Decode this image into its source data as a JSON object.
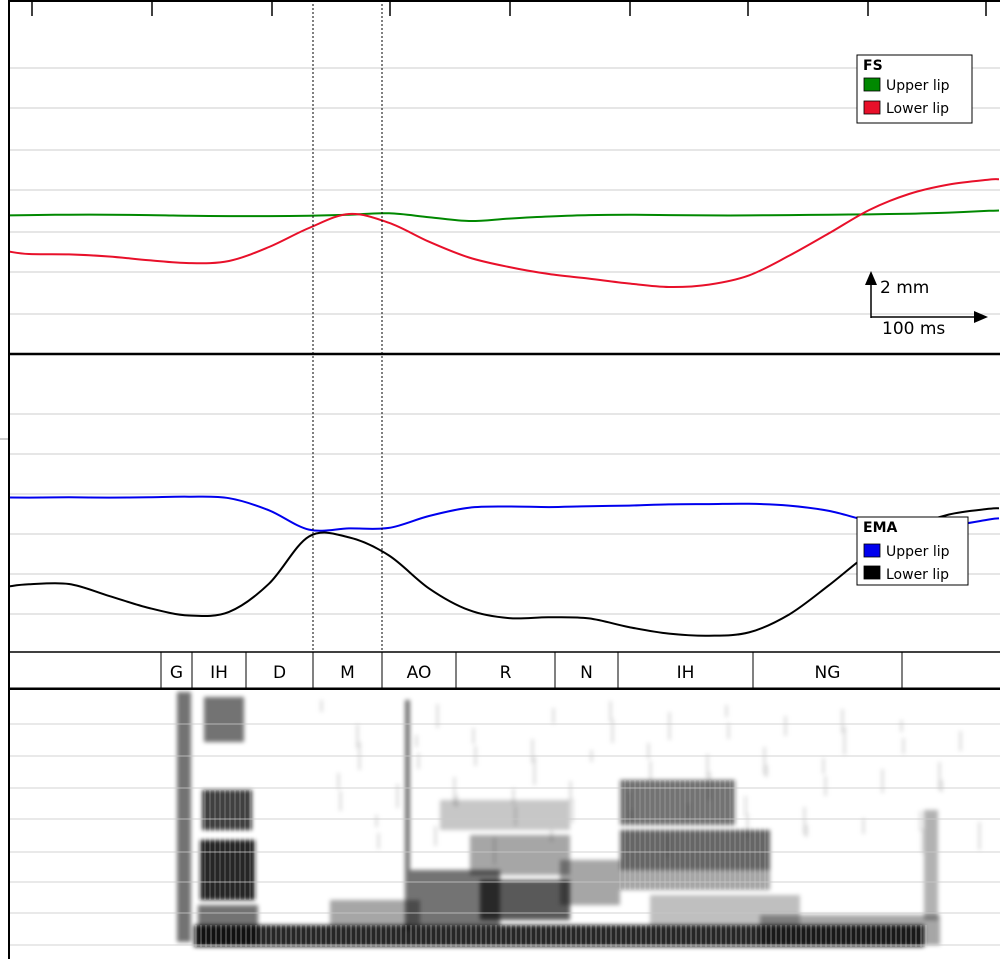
{
  "chart_data": [
    {
      "type": "line",
      "title": "",
      "legend": {
        "title": "FS",
        "placement": "top-right",
        "entries": [
          {
            "name": "Upper lip",
            "color": "#008800"
          },
          {
            "name": "Lower lip",
            "color": "#e8102a"
          }
        ]
      },
      "scale_bar": {
        "vertical_label": "2 mm",
        "horizontal_label": "100 ms"
      },
      "x": [
        0,
        20,
        60,
        100,
        140,
        180,
        220,
        260,
        300,
        340,
        380,
        420,
        460,
        500,
        540,
        580,
        620,
        660,
        700,
        740,
        780,
        820,
        860,
        900,
        940,
        980,
        990
      ],
      "series": [
        {
          "name": "Upper lip",
          "color": "#008800",
          "values": [
            39.2,
            39.3,
            39.4,
            39.4,
            39.3,
            39.1,
            39.0,
            39.0,
            39.1,
            39.4,
            39.8,
            38.7,
            37.6,
            38.3,
            38.9,
            39.3,
            39.4,
            39.3,
            39.2,
            39.2,
            39.3,
            39.4,
            39.5,
            39.7,
            40.0,
            40.5,
            40.6
          ]
        },
        {
          "name": "Lower lip",
          "color": "#e8102a",
          "values": [
            28.9,
            28.2,
            28.1,
            27.5,
            26.4,
            25.6,
            26.2,
            30.2,
            35.6,
            39.6,
            37.1,
            31.7,
            27.2,
            24.5,
            22.5,
            21.2,
            19.8,
            18.8,
            19.5,
            22.1,
            27.7,
            34.1,
            40.7,
            45.3,
            48.0,
            49.4,
            49.5
          ]
        }
      ]
    },
    {
      "type": "line",
      "title": "",
      "legend": {
        "title": "EMA",
        "placement": "right",
        "entries": [
          {
            "name": "Upper lip",
            "color": "#0000ee"
          },
          {
            "name": "Lower lip",
            "color": "#000000"
          }
        ]
      },
      "x": [
        0,
        20,
        60,
        100,
        140,
        180,
        220,
        260,
        300,
        340,
        380,
        420,
        460,
        500,
        540,
        580,
        620,
        660,
        700,
        740,
        780,
        820,
        860,
        900,
        940,
        980,
        990
      ],
      "series": [
        {
          "name": "Upper lip",
          "color": "#0000ee",
          "values": [
            52.0,
            52.0,
            52.1,
            52.0,
            52.1,
            52.3,
            51.8,
            47.7,
            41.2,
            41.6,
            41.8,
            45.8,
            48.6,
            49.0,
            48.8,
            49.1,
            49.3,
            49.7,
            49.8,
            49.9,
            49.3,
            47.5,
            44.1,
            41.8,
            42.5,
            44.6,
            45.0
          ]
        },
        {
          "name": "Lower lip",
          "color": "#000000",
          "values": [
            22.1,
            22.8,
            22.9,
            18.9,
            14.8,
            12.3,
            13.5,
            23.0,
            38.9,
            38.6,
            32.5,
            21.4,
            14.1,
            11.4,
            11.7,
            11.3,
            8.4,
            6.2,
            5.5,
            6.6,
            12.6,
            22.5,
            33.2,
            41.5,
            46.3,
            48.2,
            48.4
          ]
        }
      ]
    },
    {
      "type": "table",
      "title": "",
      "phonemes": [
        "G",
        "IH",
        "D",
        "M",
        "AO",
        "R",
        "N",
        "IH",
        "NG"
      ]
    },
    {
      "type": "heatmap",
      "title": "",
      "colormap": "grayscale"
    }
  ]
}
